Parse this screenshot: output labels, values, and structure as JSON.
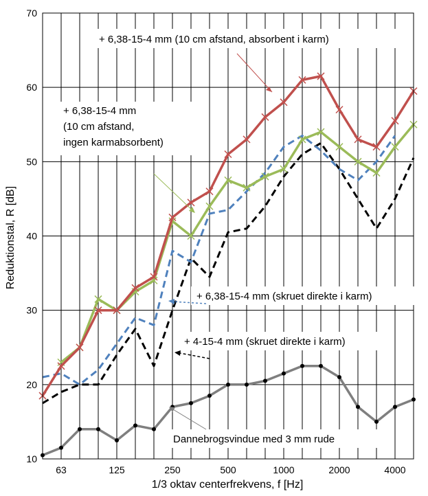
{
  "chart_data": {
    "type": "line",
    "xlabel": "1/3 oktav centerfrekvens, f [Hz]",
    "ylabel": "Reduktionstal, R [dB]",
    "ylim": [
      10,
      70
    ],
    "yticks": [
      10,
      20,
      30,
      40,
      50,
      60,
      70
    ],
    "x": [
      50,
      63,
      80,
      100,
      125,
      160,
      200,
      250,
      315,
      400,
      500,
      630,
      800,
      1000,
      1250,
      1600,
      2000,
      2500,
      3150,
      4000,
      5000
    ],
    "xtick_labels": [
      "63",
      "125",
      "250",
      "500",
      "1000",
      "2000",
      "4000"
    ],
    "grid": "vertical and horizontal",
    "series": [
      {
        "name": "+ 6,38-15-4 mm (10 cm afstand, absorbent i karm)",
        "color": "#C0504D",
        "style": "solid",
        "marker": "x",
        "values": [
          18.5,
          22.5,
          25,
          30,
          30,
          33,
          34.5,
          42.5,
          44.5,
          46,
          51,
          53,
          56,
          58,
          61,
          61.5,
          57,
          53,
          52,
          55.5,
          59.5
        ]
      },
      {
        "name": "+ 6,38-15-4 mm (10 cm afstand, ingen karmabsorbent)",
        "color": "#9BBB59",
        "style": "solid",
        "marker": "x",
        "values": [
          null,
          23,
          25,
          31.5,
          30,
          32.5,
          34,
          42,
          40,
          44,
          47.5,
          46.5,
          48,
          49,
          53,
          54,
          52,
          50,
          48.5,
          52,
          55
        ]
      },
      {
        "name": "+ 6,38-15-4 mm (skruet direkte i karm)",
        "color": "#4F81BD",
        "style": "dashed",
        "marker": "none",
        "values": [
          21,
          21.5,
          20,
          22,
          25.5,
          29,
          28,
          38,
          36.5,
          43,
          43.5,
          46,
          48.5,
          52,
          53.5,
          51.5,
          49,
          47.5,
          50,
          53.5,
          null
        ]
      },
      {
        "name": "+ 4-15-4 mm (skruet direkte i karm)",
        "color": "#000000",
        "style": "dashed",
        "marker": "none",
        "values": [
          17.5,
          19,
          20,
          20,
          24,
          27.5,
          22.5,
          30,
          37,
          34.5,
          40.5,
          41,
          44,
          48,
          51,
          52.5,
          49,
          45,
          41,
          45,
          50.5
        ]
      },
      {
        "name": "Dannebrogsvindue med 3 mm rude",
        "color": "#7F7F7F",
        "style": "solid",
        "marker": "dot",
        "values": [
          10.5,
          11.5,
          14,
          14,
          12.5,
          14.5,
          14,
          17,
          17.5,
          18.5,
          20,
          20,
          20.5,
          21.5,
          22.5,
          22.5,
          21,
          17,
          15,
          17,
          18
        ]
      }
    ],
    "annotations": [
      {
        "text": "+ 6,38-15-4 mm (10 cm afstand, absorbent i karm)",
        "series_index": 0
      },
      {
        "lines": [
          "+ 6,38-15-4 mm",
          "(10 cm afstand,",
          "ingen karmabsorbent)"
        ],
        "series_index": 1
      },
      {
        "text": "+ 6,38-15-4 mm (skruet direkte i karm)",
        "series_index": 2
      },
      {
        "text": "+ 4-15-4 mm (skruet direkte i karm)",
        "series_index": 3
      },
      {
        "text": "Dannebrogsvindue med 3 mm rude",
        "series_index": 4
      }
    ]
  }
}
